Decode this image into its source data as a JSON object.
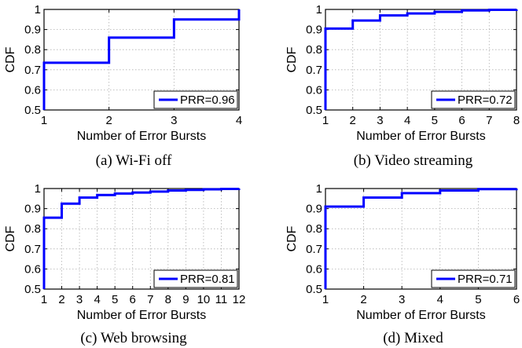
{
  "chart_data": [
    {
      "type": "line",
      "step": true,
      "caption": "(a)  Wi-Fi off",
      "xlabel": "Number of Error Bursts",
      "ylabel": "CDF",
      "xlim": [
        1,
        4
      ],
      "ylim": [
        0.5,
        1
      ],
      "xticks": [
        "1",
        "2",
        "3",
        "4"
      ],
      "yticks": [
        "0.5",
        "0.6",
        "0.7",
        "0.8",
        "0.9",
        "1"
      ],
      "grid": true,
      "legend_position": "bottom-right",
      "series": [
        {
          "name": "PRR=0.96",
          "color": "#0000ff",
          "x": [
            1,
            2,
            3,
            4
          ],
          "y": [
            0.735,
            0.86,
            0.95,
            1.0
          ]
        }
      ]
    },
    {
      "type": "line",
      "step": true,
      "caption": "(b)  Video streaming",
      "xlabel": "Number of Error Bursts",
      "ylabel": "CDF",
      "xlim": [
        1,
        8
      ],
      "ylim": [
        0.5,
        1
      ],
      "xticks": [
        "1",
        "2",
        "3",
        "4",
        "5",
        "6",
        "7",
        "8"
      ],
      "yticks": [
        "0.5",
        "0.6",
        "0.7",
        "0.8",
        "0.9",
        "1"
      ],
      "grid": true,
      "legend_position": "bottom-right",
      "series": [
        {
          "name": "PRR=0.72",
          "color": "#0000ff",
          "x": [
            1,
            2,
            3,
            4,
            5,
            6,
            7,
            8
          ],
          "y": [
            0.905,
            0.945,
            0.97,
            0.98,
            0.988,
            0.995,
            0.998,
            1.0
          ]
        }
      ]
    },
    {
      "type": "line",
      "step": true,
      "caption": "(c)  Web browsing",
      "xlabel": "Number of Error Bursts",
      "ylabel": "CDF",
      "xlim": [
        1,
        12
      ],
      "ylim": [
        0.5,
        1
      ],
      "xticks": [
        "1",
        "2",
        "3",
        "4",
        "5",
        "6",
        "7",
        "8",
        "9",
        "10",
        "11",
        "12"
      ],
      "yticks": [
        "0.5",
        "0.6",
        "0.7",
        "0.8",
        "0.9",
        "1"
      ],
      "grid": true,
      "legend_position": "bottom-right",
      "series": [
        {
          "name": "PRR=0.81",
          "color": "#0000ff",
          "x": [
            1,
            2,
            3,
            4,
            5,
            6,
            7,
            8,
            9,
            10,
            11,
            12
          ],
          "y": [
            0.855,
            0.925,
            0.955,
            0.968,
            0.975,
            0.98,
            0.985,
            0.99,
            0.993,
            0.996,
            0.998,
            1.0
          ]
        }
      ]
    },
    {
      "type": "line",
      "step": true,
      "caption": "(d)  Mixed",
      "xlabel": "Number of Error Bursts",
      "ylabel": "CDF",
      "xlim": [
        1,
        6
      ],
      "ylim": [
        0.5,
        1
      ],
      "xticks": [
        "1",
        "2",
        "3",
        "4",
        "5",
        "6"
      ],
      "yticks": [
        "0.5",
        "0.6",
        "0.7",
        "0.8",
        "0.9",
        "1"
      ],
      "grid": true,
      "legend_position": "bottom-right",
      "series": [
        {
          "name": "PRR=0.71",
          "color": "#0000ff",
          "x": [
            1,
            2,
            3,
            4,
            5,
            6
          ],
          "y": [
            0.91,
            0.955,
            0.977,
            0.99,
            0.997,
            1.0
          ]
        }
      ]
    }
  ]
}
